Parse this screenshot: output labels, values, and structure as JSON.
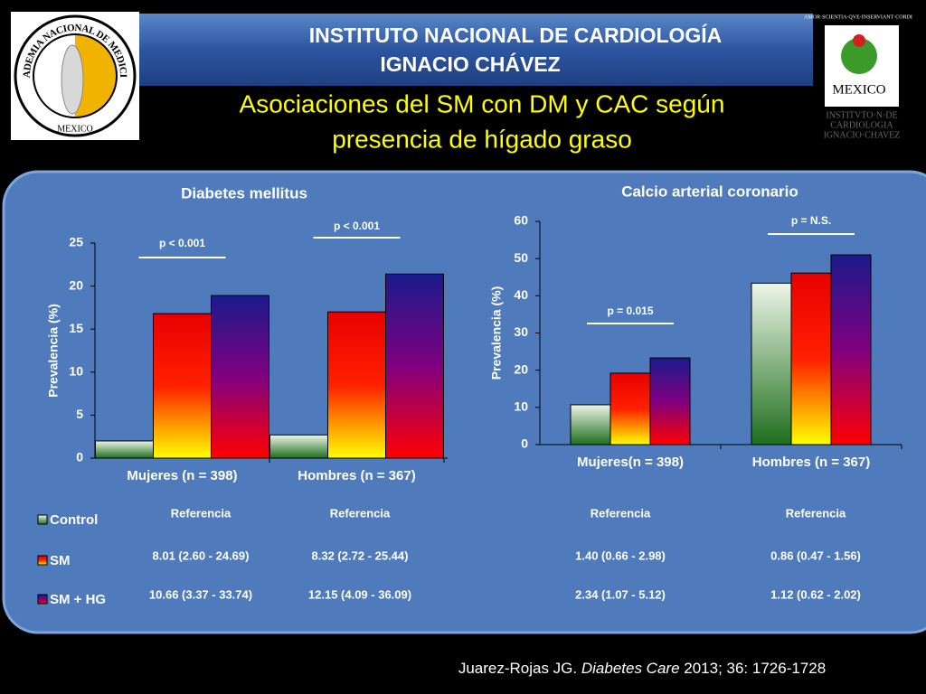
{
  "header": {
    "institute": [
      "INSTITUTO NACIONAL DE CARDIOLOGÍA",
      "IGNACIO CHÁVEZ"
    ],
    "title": [
      "Asociaciones del SM con DM y CAC según",
      "presencia de hígado graso"
    ],
    "left_logo": [
      "ACADEMIA NACIONAL DE MEDICINA",
      "MEXICO"
    ],
    "right_logo": [
      "AMOR·SCIENTIA·QVE·INSERVIANT·CORDI",
      "MEXICO",
      "INSTITVTO·N·DE",
      "CARDIOLOGIA",
      "IGNACIO·CHAVEZ"
    ]
  },
  "chart_data": [
    {
      "type": "bar",
      "title": "Diabetes mellitus",
      "y_label": "Prevalencia (%)",
      "categories": [
        "Mujeres (n = 398)",
        "Hombres (n = 367)"
      ],
      "series": [
        {
          "name": "Control",
          "color": [
            "#1e6e1e",
            "#eef6e8"
          ],
          "values": [
            2.0,
            2.7
          ]
        },
        {
          "name": "SM",
          "color": [
            "#ffff00",
            "#ff2000",
            "#e80000"
          ],
          "values": [
            16.8,
            17.0
          ]
        },
        {
          "name": "SM + HG",
          "color": [
            "#ff0000",
            "#800080",
            "#1a1a8c"
          ],
          "values": [
            18.9,
            21.4
          ]
        }
      ],
      "ylim": [
        0,
        25
      ],
      "yticks": [
        0,
        5,
        10,
        15,
        20,
        25
      ],
      "annotations": [
        "p < 0.001",
        "p < 0.001"
      ]
    },
    {
      "type": "bar",
      "title": "Calcio arterial coronario",
      "y_label": "Prevalencia (%)",
      "categories": [
        "Mujeres(n = 398)",
        "Hombres (n = 367)"
      ],
      "series": [
        {
          "color": [
            "#1e6e1e",
            "#eef6e8"
          ],
          "values": [
            10.7,
            43.4
          ]
        },
        {
          "color": [
            "#ffff00",
            "#ff2000",
            "#e80000"
          ],
          "values": [
            19.2,
            46.1
          ]
        },
        {
          "color": [
            "#ff0000",
            "#800080",
            "#1a1a8c"
          ],
          "values": [
            23.3,
            51.0
          ]
        }
      ],
      "ylim": [
        0,
        60
      ],
      "yticks": [
        0,
        10,
        20,
        30,
        40,
        50,
        60
      ],
      "annotations": [
        "p = 0.015",
        "p = N.S."
      ]
    }
  ],
  "table": {
    "rows": [
      [
        "Referencia",
        "Referencia",
        "Referencia",
        "Referencia"
      ],
      [
        "8.01 (2.60 - 24.69)",
        "8.32 (2.72 - 25.44)",
        "1.40 (0.66 - 2.98)",
        "0.86 (0.47 - 1.56)"
      ],
      [
        "10.66 (3.37 - 33.74)",
        "12.15 (4.09 - 36.09)",
        "2.34 (1.07 - 5.12)",
        "1.12 (0.62 - 2.02)"
      ]
    ]
  },
  "citation": [
    "Juarez-Rojas JG. ",
    "Diabetes Care",
    " 2013; 36: 1726-1728"
  ]
}
